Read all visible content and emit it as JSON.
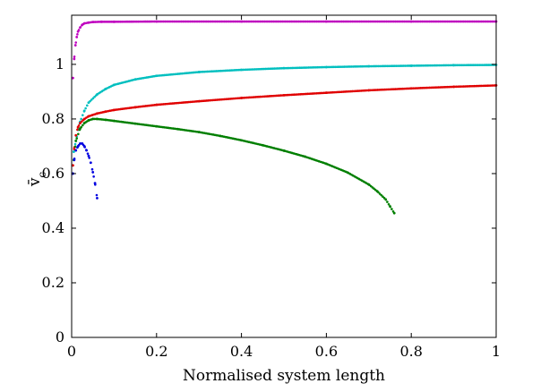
{
  "chart_data": {
    "type": "scatter",
    "title": "",
    "xlabel": "Normalised system length",
    "ylabel": "v̄",
    "ylabel_subscript": "c",
    "xlim": [
      0,
      1
    ],
    "ylim": [
      0,
      1.18
    ],
    "xticks": [
      0,
      0.2,
      0.4,
      0.6,
      0.8,
      1
    ],
    "xtick_labels": [
      "0",
      "0.2",
      "0.4",
      "0.6",
      "0.8",
      "1"
    ],
    "yticks": [
      0,
      0.2,
      0.4,
      0.6,
      0.8,
      1
    ],
    "ytick_labels": [
      "0",
      "0.2",
      "0.4",
      "0.6",
      "0.8",
      "1"
    ],
    "grid": false,
    "series": [
      {
        "name": "magenta",
        "color": "#bf00bf",
        "x": [
          0.003,
          0.006,
          0.009,
          0.012,
          0.015,
          0.02,
          0.025,
          0.03,
          0.04,
          0.05,
          0.07,
          0.1,
          0.2,
          0.4,
          0.6,
          0.8,
          1.0
        ],
        "y": [
          0.95,
          1.02,
          1.07,
          1.1,
          1.12,
          1.135,
          1.145,
          1.15,
          1.153,
          1.155,
          1.156,
          1.156,
          1.157,
          1.157,
          1.157,
          1.157,
          1.157
        ]
      },
      {
        "name": "cyan",
        "color": "#00bfbf",
        "x": [
          0.005,
          0.01,
          0.015,
          0.02,
          0.03,
          0.04,
          0.06,
          0.08,
          0.1,
          0.15,
          0.2,
          0.3,
          0.4,
          0.5,
          0.6,
          0.7,
          0.8,
          0.9,
          1.0
        ],
        "y": [
          0.68,
          0.72,
          0.76,
          0.79,
          0.83,
          0.86,
          0.89,
          0.91,
          0.925,
          0.945,
          0.958,
          0.972,
          0.98,
          0.986,
          0.99,
          0.993,
          0.995,
          0.997,
          0.998
        ]
      },
      {
        "name": "red",
        "color": "#e00000",
        "x": [
          0.003,
          0.006,
          0.01,
          0.015,
          0.02,
          0.03,
          0.04,
          0.06,
          0.08,
          0.1,
          0.15,
          0.2,
          0.3,
          0.4,
          0.5,
          0.6,
          0.7,
          0.8,
          0.9,
          1.0
        ],
        "y": [
          0.63,
          0.69,
          0.74,
          0.77,
          0.785,
          0.8,
          0.81,
          0.82,
          0.827,
          0.833,
          0.843,
          0.852,
          0.865,
          0.877,
          0.887,
          0.896,
          0.905,
          0.912,
          0.918,
          0.923
        ]
      },
      {
        "name": "green",
        "color": "#007f00",
        "x": [
          0.005,
          0.01,
          0.02,
          0.03,
          0.04,
          0.05,
          0.06,
          0.08,
          0.1,
          0.15,
          0.2,
          0.25,
          0.3,
          0.35,
          0.4,
          0.45,
          0.5,
          0.55,
          0.6,
          0.65,
          0.7,
          0.72,
          0.74,
          0.75,
          0.76
        ],
        "y": [
          0.65,
          0.72,
          0.765,
          0.785,
          0.795,
          0.8,
          0.8,
          0.797,
          0.793,
          0.783,
          0.773,
          0.763,
          0.752,
          0.738,
          0.722,
          0.704,
          0.684,
          0.662,
          0.636,
          0.604,
          0.56,
          0.535,
          0.505,
          0.48,
          0.455
        ]
      },
      {
        "name": "blue",
        "color": "#0000e0",
        "x": [
          0.003,
          0.006,
          0.01,
          0.015,
          0.02,
          0.025,
          0.03,
          0.035,
          0.04,
          0.045,
          0.05,
          0.055,
          0.06
        ],
        "y": [
          0.6,
          0.65,
          0.685,
          0.7,
          0.71,
          0.71,
          0.7,
          0.685,
          0.665,
          0.64,
          0.605,
          0.565,
          0.51
        ]
      }
    ]
  }
}
